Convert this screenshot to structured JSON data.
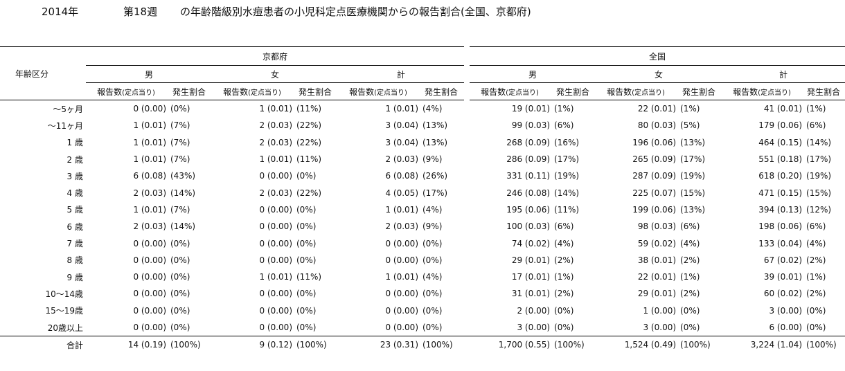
{
  "header": {
    "year": "2014年",
    "week": "第18週",
    "title": "の年齢階級別水痘患者の小児科定点医療機関からの報告割合(全国、京都府)"
  },
  "columns": {
    "age_label": "年齢区分",
    "regions": [
      "京都府",
      "全国"
    ],
    "sexes": [
      "男",
      "女",
      "計"
    ],
    "count_label": "報告数",
    "per_label": "(定点当り)",
    "ratio_label": "発生割合"
  },
  "rows": [
    {
      "age": "～5ヶ月",
      "kyoto": [
        [
          "0 (0.00)",
          "(0%)"
        ],
        [
          "1 (0.01)",
          "(11%)"
        ],
        [
          "1 (0.01)",
          "(4%)"
        ]
      ],
      "national": [
        [
          "19 (0.01)",
          "(1%)"
        ],
        [
          "22 (0.01)",
          "(1%)"
        ],
        [
          "41 (0.01)",
          "(1%)"
        ]
      ]
    },
    {
      "age": "～11ヶ月",
      "kyoto": [
        [
          "1 (0.01)",
          "(7%)"
        ],
        [
          "2 (0.03)",
          "(22%)"
        ],
        [
          "3 (0.04)",
          "(13%)"
        ]
      ],
      "national": [
        [
          "99 (0.03)",
          "(6%)"
        ],
        [
          "80 (0.03)",
          "(5%)"
        ],
        [
          "179 (0.06)",
          "(6%)"
        ]
      ]
    },
    {
      "age": "1 歳",
      "kyoto": [
        [
          "1 (0.01)",
          "(7%)"
        ],
        [
          "2 (0.03)",
          "(22%)"
        ],
        [
          "3 (0.04)",
          "(13%)"
        ]
      ],
      "national": [
        [
          "268 (0.09)",
          "(16%)"
        ],
        [
          "196 (0.06)",
          "(13%)"
        ],
        [
          "464 (0.15)",
          "(14%)"
        ]
      ]
    },
    {
      "age": "2 歳",
      "kyoto": [
        [
          "1 (0.01)",
          "(7%)"
        ],
        [
          "1 (0.01)",
          "(11%)"
        ],
        [
          "2 (0.03)",
          "(9%)"
        ]
      ],
      "national": [
        [
          "286 (0.09)",
          "(17%)"
        ],
        [
          "265 (0.09)",
          "(17%)"
        ],
        [
          "551 (0.18)",
          "(17%)"
        ]
      ]
    },
    {
      "age": "3 歳",
      "kyoto": [
        [
          "6 (0.08)",
          "(43%)"
        ],
        [
          "0 (0.00)",
          "(0%)"
        ],
        [
          "6 (0.08)",
          "(26%)"
        ]
      ],
      "national": [
        [
          "331 (0.11)",
          "(19%)"
        ],
        [
          "287 (0.09)",
          "(19%)"
        ],
        [
          "618 (0.20)",
          "(19%)"
        ]
      ]
    },
    {
      "age": "4 歳",
      "kyoto": [
        [
          "2 (0.03)",
          "(14%)"
        ],
        [
          "2 (0.03)",
          "(22%)"
        ],
        [
          "4 (0.05)",
          "(17%)"
        ]
      ],
      "national": [
        [
          "246 (0.08)",
          "(14%)"
        ],
        [
          "225 (0.07)",
          "(15%)"
        ],
        [
          "471 (0.15)",
          "(15%)"
        ]
      ]
    },
    {
      "age": "5 歳",
      "kyoto": [
        [
          "1 (0.01)",
          "(7%)"
        ],
        [
          "0 (0.00)",
          "(0%)"
        ],
        [
          "1 (0.01)",
          "(4%)"
        ]
      ],
      "national": [
        [
          "195 (0.06)",
          "(11%)"
        ],
        [
          "199 (0.06)",
          "(13%)"
        ],
        [
          "394 (0.13)",
          "(12%)"
        ]
      ]
    },
    {
      "age": "6 歳",
      "kyoto": [
        [
          "2 (0.03)",
          "(14%)"
        ],
        [
          "0 (0.00)",
          "(0%)"
        ],
        [
          "2 (0.03)",
          "(9%)"
        ]
      ],
      "national": [
        [
          "100 (0.03)",
          "(6%)"
        ],
        [
          "98 (0.03)",
          "(6%)"
        ],
        [
          "198 (0.06)",
          "(6%)"
        ]
      ]
    },
    {
      "age": "7 歳",
      "kyoto": [
        [
          "0 (0.00)",
          "(0%)"
        ],
        [
          "0 (0.00)",
          "(0%)"
        ],
        [
          "0 (0.00)",
          "(0%)"
        ]
      ],
      "national": [
        [
          "74 (0.02)",
          "(4%)"
        ],
        [
          "59 (0.02)",
          "(4%)"
        ],
        [
          "133 (0.04)",
          "(4%)"
        ]
      ]
    },
    {
      "age": "8 歳",
      "kyoto": [
        [
          "0 (0.00)",
          "(0%)"
        ],
        [
          "0 (0.00)",
          "(0%)"
        ],
        [
          "0 (0.00)",
          "(0%)"
        ]
      ],
      "national": [
        [
          "29 (0.01)",
          "(2%)"
        ],
        [
          "38 (0.01)",
          "(2%)"
        ],
        [
          "67 (0.02)",
          "(2%)"
        ]
      ]
    },
    {
      "age": "9 歳",
      "kyoto": [
        [
          "0 (0.00)",
          "(0%)"
        ],
        [
          "1 (0.01)",
          "(11%)"
        ],
        [
          "1 (0.01)",
          "(4%)"
        ]
      ],
      "national": [
        [
          "17 (0.01)",
          "(1%)"
        ],
        [
          "22 (0.01)",
          "(1%)"
        ],
        [
          "39 (0.01)",
          "(1%)"
        ]
      ]
    },
    {
      "age": "10～14歳",
      "kyoto": [
        [
          "0 (0.00)",
          "(0%)"
        ],
        [
          "0 (0.00)",
          "(0%)"
        ],
        [
          "0 (0.00)",
          "(0%)"
        ]
      ],
      "national": [
        [
          "31 (0.01)",
          "(2%)"
        ],
        [
          "29 (0.01)",
          "(2%)"
        ],
        [
          "60 (0.02)",
          "(2%)"
        ]
      ]
    },
    {
      "age": "15～19歳",
      "kyoto": [
        [
          "0 (0.00)",
          "(0%)"
        ],
        [
          "0 (0.00)",
          "(0%)"
        ],
        [
          "0 (0.00)",
          "(0%)"
        ]
      ],
      "national": [
        [
          "2 (0.00)",
          "(0%)"
        ],
        [
          "1 (0.00)",
          "(0%)"
        ],
        [
          "3 (0.00)",
          "(0%)"
        ]
      ]
    },
    {
      "age": "20歳以上",
      "kyoto": [
        [
          "0 (0.00)",
          "(0%)"
        ],
        [
          "0 (0.00)",
          "(0%)"
        ],
        [
          "0 (0.00)",
          "(0%)"
        ]
      ],
      "national": [
        [
          "3 (0.00)",
          "(0%)"
        ],
        [
          "3 (0.00)",
          "(0%)"
        ],
        [
          "6 (0.00)",
          "(0%)"
        ]
      ]
    }
  ],
  "total": {
    "age": "合計",
    "kyoto": [
      [
        "14 (0.19)",
        "(100%)"
      ],
      [
        "9 (0.12)",
        "(100%)"
      ],
      [
        "23 (0.31)",
        "(100%)"
      ]
    ],
    "national": [
      [
        "1,700 (0.55)",
        "(100%)"
      ],
      [
        "1,524 (0.49)",
        "(100%)"
      ],
      [
        "3,224 (1.04)",
        "(100%)"
      ]
    ]
  }
}
